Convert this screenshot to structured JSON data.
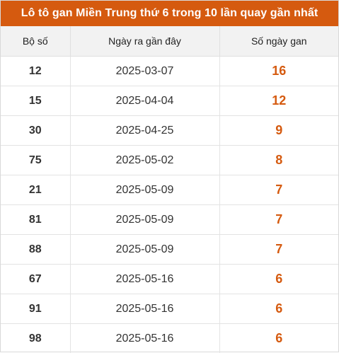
{
  "title": "Lô tô gan Miền Trung thứ 6 trong 10 lần quay gần nhất",
  "colors": {
    "header_bg": "#d55a0f",
    "accent_text": "#d55a0f",
    "column_header_bg": "#f2f2f2"
  },
  "table": {
    "headers": [
      "Bộ số",
      "Ngày ra gần đây",
      "Số ngày gan"
    ],
    "rows": [
      {
        "number": "12",
        "date": "2025-03-07",
        "days": "16"
      },
      {
        "number": "15",
        "date": "2025-04-04",
        "days": "12"
      },
      {
        "number": "30",
        "date": "2025-04-25",
        "days": "9"
      },
      {
        "number": "75",
        "date": "2025-05-02",
        "days": "8"
      },
      {
        "number": "21",
        "date": "2025-05-09",
        "days": "7"
      },
      {
        "number": "81",
        "date": "2025-05-09",
        "days": "7"
      },
      {
        "number": "88",
        "date": "2025-05-09",
        "days": "7"
      },
      {
        "number": "67",
        "date": "2025-05-16",
        "days": "6"
      },
      {
        "number": "91",
        "date": "2025-05-16",
        "days": "6"
      },
      {
        "number": "98",
        "date": "2025-05-16",
        "days": "6"
      }
    ]
  }
}
